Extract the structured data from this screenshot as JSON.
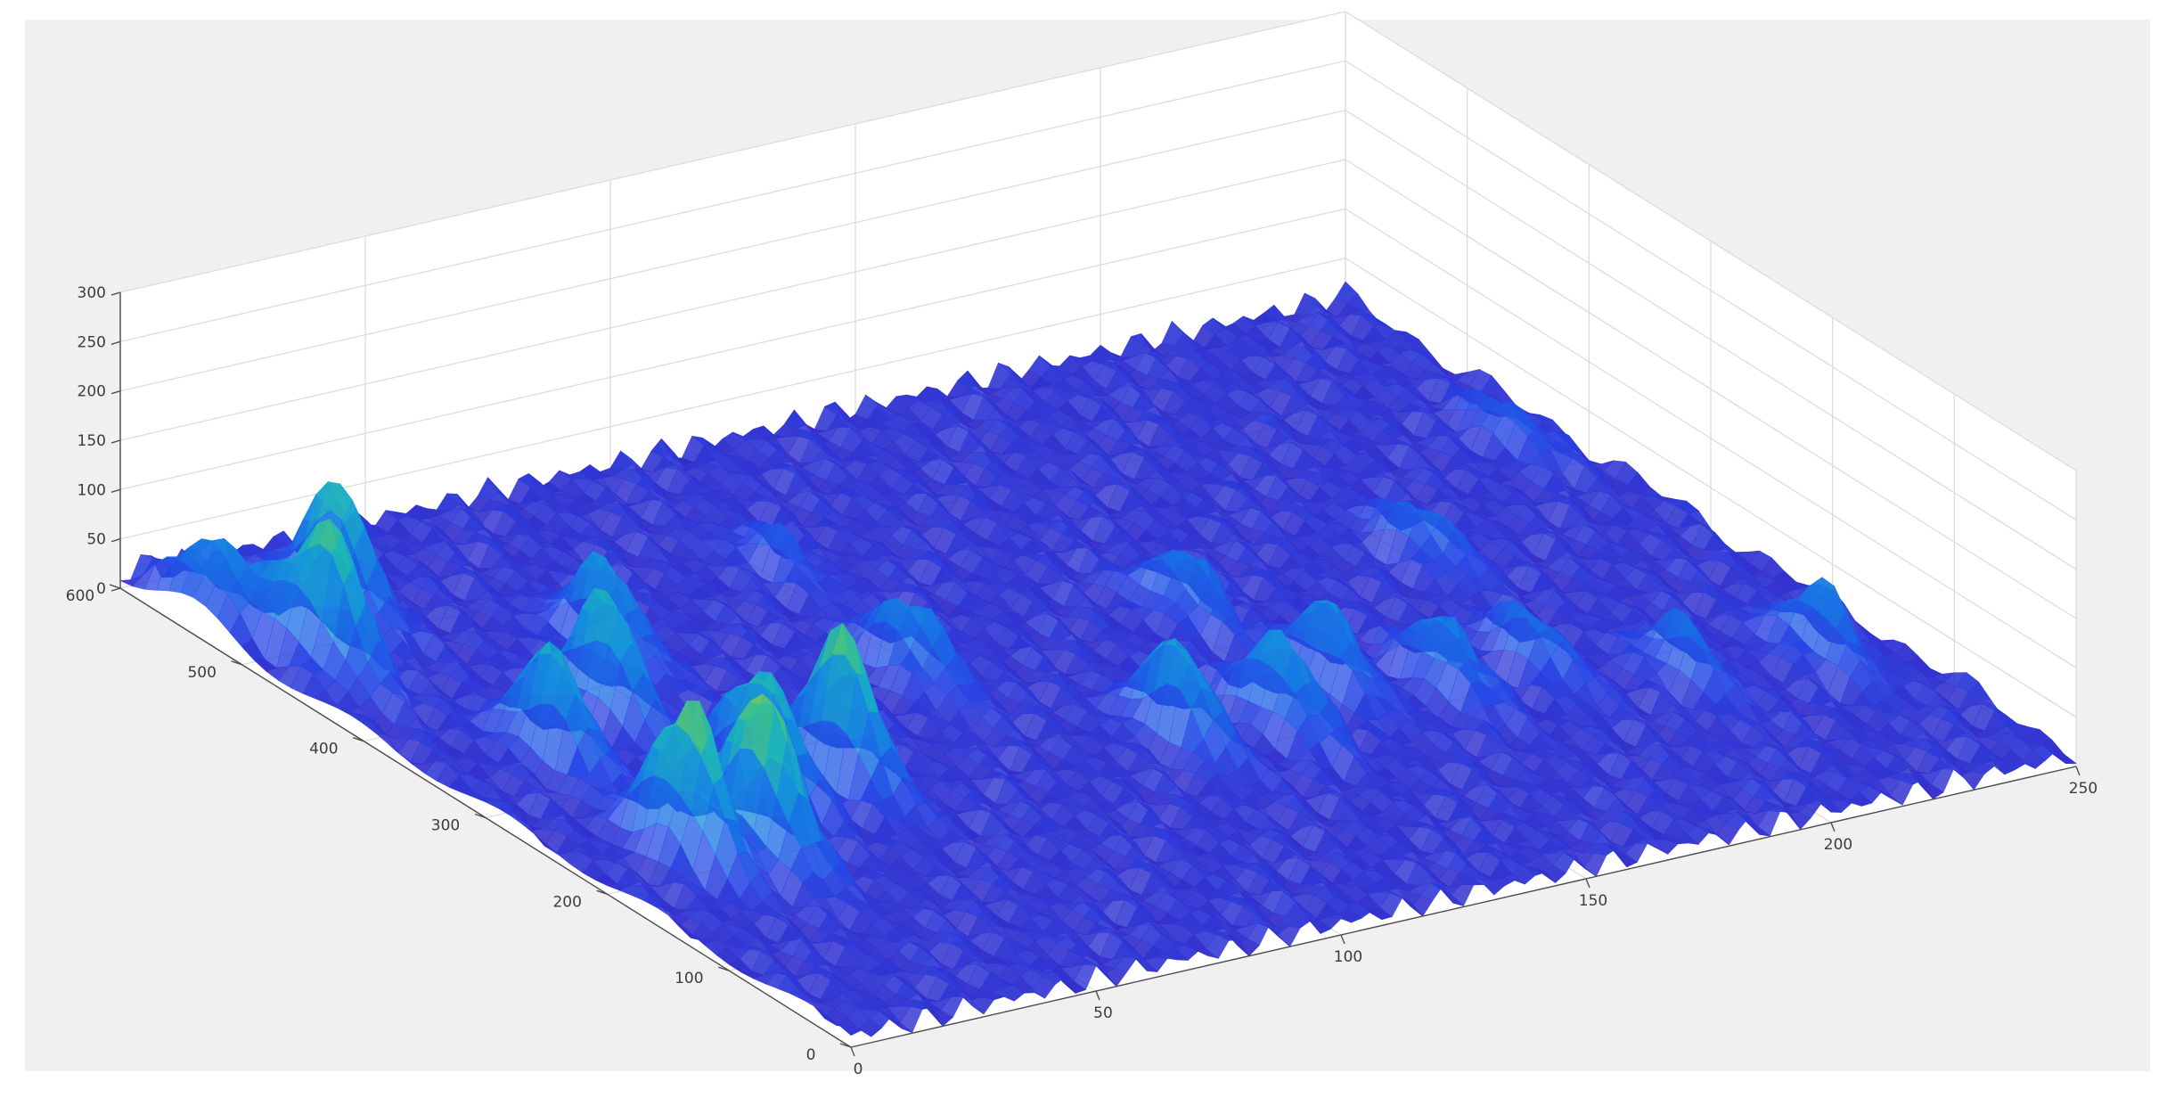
{
  "chart_data": {
    "type": "surface",
    "title": "",
    "xlabel": "",
    "ylabel": "",
    "zlabel": "",
    "xlim": [
      0,
      250
    ],
    "ylim": [
      0,
      600
    ],
    "zlim": [
      0,
      300
    ],
    "x_ticks": [
      0,
      50,
      100,
      150,
      200,
      250
    ],
    "y_ticks": [
      0,
      100,
      200,
      300,
      400,
      500,
      600
    ],
    "z_ticks": [
      0,
      50,
      100,
      150,
      200,
      250,
      300
    ],
    "x_tick_labels": [
      "0",
      "50",
      "100",
      "150",
      "200",
      "250"
    ],
    "y_tick_labels": [
      "0",
      "100",
      "200",
      "300",
      "400",
      "500",
      "600"
    ],
    "z_tick_labels": [
      "0",
      "50",
      "100",
      "150",
      "200",
      "250",
      "300"
    ],
    "grid": true,
    "colormap": "parula",
    "background_color": "#f0f0f0",
    "axes_color": "#ffffff",
    "peaks": [
      {
        "x": 18,
        "y": 205,
        "z": 160
      },
      {
        "x": 30,
        "y": 190,
        "z": 170
      },
      {
        "x": 45,
        "y": 250,
        "z": 130
      },
      {
        "x": 60,
        "y": 245,
        "z": 150
      },
      {
        "x": 22,
        "y": 330,
        "z": 110
      },
      {
        "x": 40,
        "y": 360,
        "z": 120
      },
      {
        "x": 55,
        "y": 420,
        "z": 90
      },
      {
        "x": 10,
        "y": 470,
        "z": 150
      },
      {
        "x": 25,
        "y": 520,
        "z": 125
      },
      {
        "x": 5,
        "y": 540,
        "z": 80
      },
      {
        "x": 95,
        "y": 330,
        "z": 80
      },
      {
        "x": 120,
        "y": 210,
        "z": 100
      },
      {
        "x": 138,
        "y": 200,
        "z": 95
      },
      {
        "x": 155,
        "y": 230,
        "z": 80
      },
      {
        "x": 172,
        "y": 200,
        "z": 70
      },
      {
        "x": 190,
        "y": 200,
        "z": 60
      },
      {
        "x": 210,
        "y": 160,
        "z": 55
      },
      {
        "x": 235,
        "y": 150,
        "z": 70
      },
      {
        "x": 150,
        "y": 330,
        "z": 65
      },
      {
        "x": 200,
        "y": 330,
        "z": 55
      },
      {
        "x": 240,
        "y": 420,
        "z": 40
      },
      {
        "x": 100,
        "y": 460,
        "z": 35
      }
    ]
  }
}
